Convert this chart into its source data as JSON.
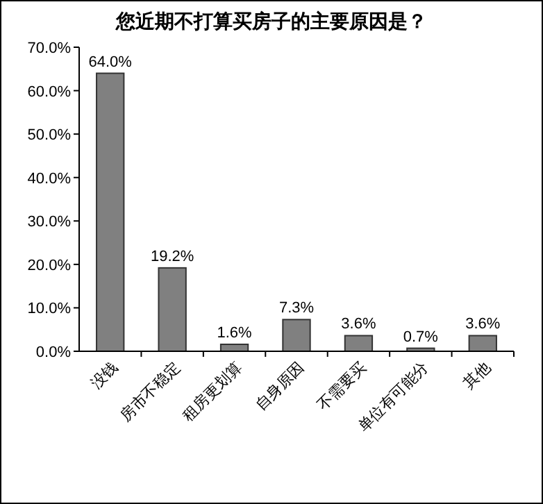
{
  "chart_data": {
    "type": "bar",
    "title": "您近期不打算买房子的主要原因是？",
    "categories": [
      "没钱",
      "房市不稳定",
      "租房更划算",
      "自身原因",
      "不需要买",
      "单位有可能分",
      "其他"
    ],
    "values": [
      64.0,
      19.2,
      1.6,
      7.3,
      3.6,
      0.7,
      3.6
    ],
    "value_labels": [
      "64.0%",
      "19.2%",
      "1.6%",
      "7.3%",
      "3.6%",
      "0.7%",
      "3.6%"
    ],
    "color": "#808080",
    "ylim": [
      0,
      70
    ],
    "yticks": [
      {
        "value": 0,
        "label": "0.0%"
      },
      {
        "value": 10,
        "label": "10.0%"
      },
      {
        "value": 20,
        "label": "20.0%"
      },
      {
        "value": 30,
        "label": "30.0%"
      },
      {
        "value": 40,
        "label": "40.0%"
      },
      {
        "value": 50,
        "label": "50.0%"
      },
      {
        "value": 60,
        "label": "60.0%"
      },
      {
        "value": 70,
        "label": "70.0%"
      }
    ],
    "grid": false
  }
}
